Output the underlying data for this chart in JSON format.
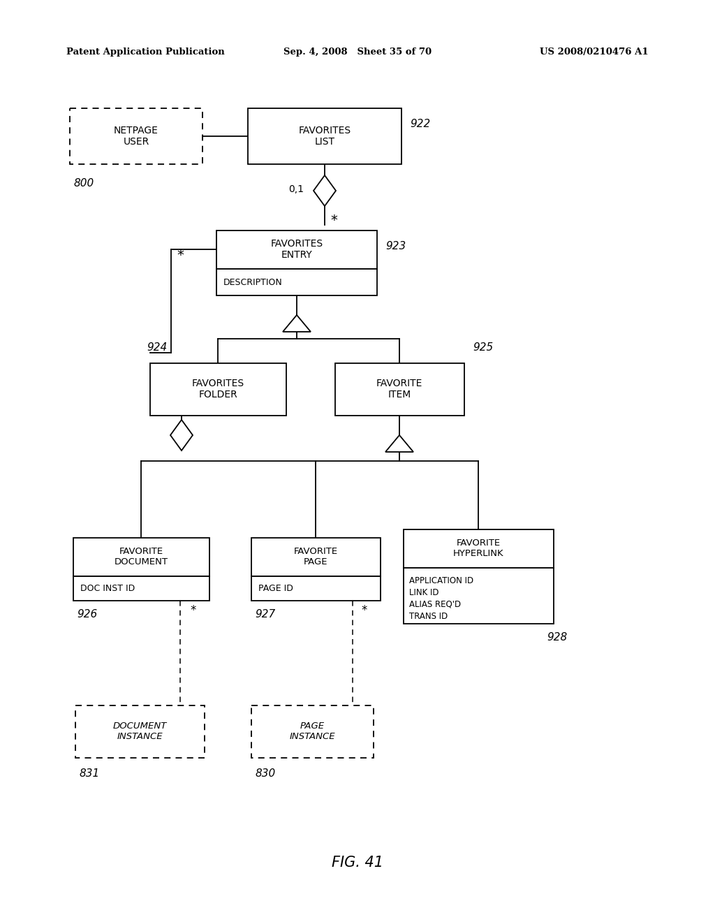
{
  "title": "FIG. 41",
  "header_left": "Patent Application Publication",
  "header_center": "Sep. 4, 2008   Sheet 35 of 70",
  "header_right": "US 2008/0210476 A1",
  "background": "#ffffff",
  "fig_w": 10.24,
  "fig_h": 13.2,
  "dpi": 100
}
